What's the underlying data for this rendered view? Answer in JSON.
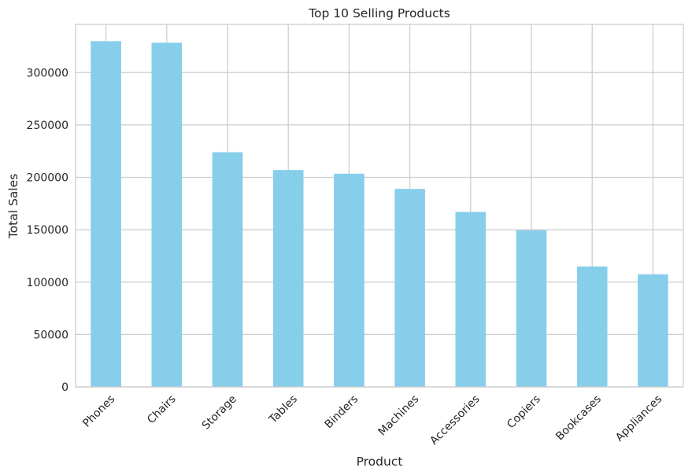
{
  "chart_data": {
    "type": "bar",
    "title": "Top 10 Selling Products",
    "xlabel": "Product",
    "ylabel": "Total Sales",
    "categories": [
      "Phones",
      "Chairs",
      "Storage",
      "Tables",
      "Binders",
      "Machines",
      "Accessories",
      "Copiers",
      "Bookcases",
      "Appliances"
    ],
    "values": [
      330000,
      328500,
      224000,
      207000,
      203500,
      189000,
      167000,
      149500,
      115000,
      107500
    ],
    "yticks": [
      0,
      50000,
      100000,
      150000,
      200000,
      250000,
      300000
    ],
    "ytick_labels": [
      "0",
      "50000",
      "100000",
      "150000",
      "200000",
      "250000",
      "300000"
    ],
    "ylim": [
      0,
      346000
    ],
    "grid": true,
    "bar_color": "#87ceeb",
    "grid_color": "#cccccc",
    "axes_edge_color": "#cccccc",
    "text_color": "#262626"
  }
}
